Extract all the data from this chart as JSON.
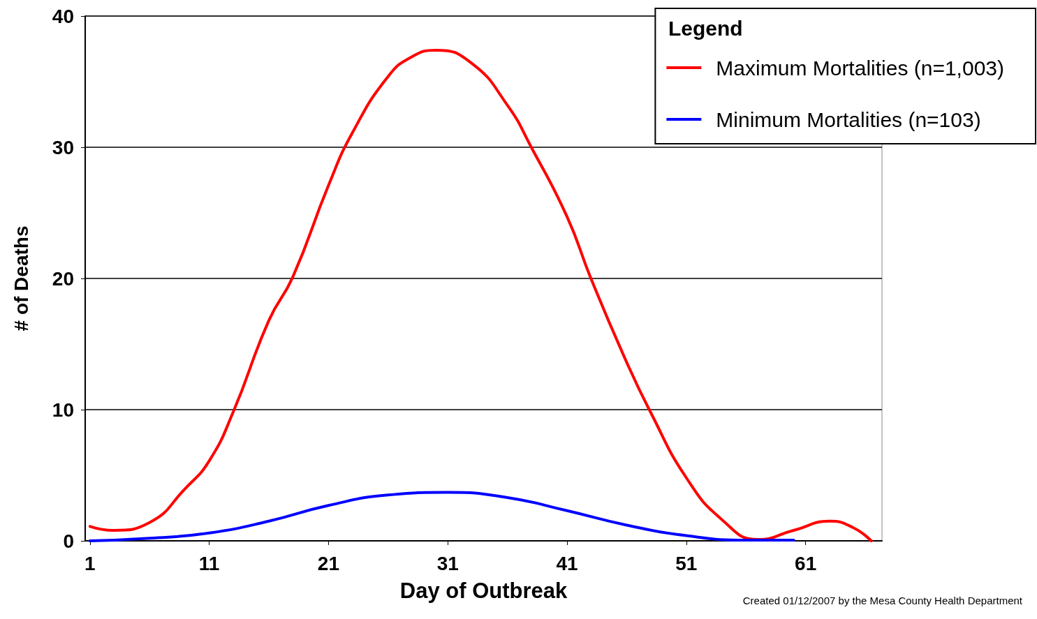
{
  "chart_data": {
    "type": "line",
    "xlabel": "Day of Outbreak",
    "ylabel": "# of Deaths",
    "legend_title": "Legend",
    "legend": "top right",
    "grid": "y",
    "marker": "none",
    "line_style": "solid",
    "xlim": [
      0.6,
      67.4
    ],
    "xticks": [
      1,
      11,
      21,
      31,
      41,
      51,
      61
    ],
    "ylim": [
      0,
      40
    ],
    "yticks": [
      0,
      10,
      20,
      30,
      40
    ],
    "series": [
      {
        "name": "Maximum Mortalities (n=1,003)",
        "color": "#ff0000",
        "x": [
          1,
          3,
          6,
          9,
          11,
          13,
          16,
          18,
          21,
          23,
          26,
          28,
          30,
          33,
          36,
          38,
          41,
          43,
          46,
          48,
          51,
          54,
          57,
          60,
          63,
          65,
          66.5
        ],
        "values": [
          1.1,
          0.8,
          1.4,
          4,
          6.1,
          9.8,
          16.8,
          20.1,
          27.1,
          31.1,
          35.4,
          36.9,
          37.4,
          36.4,
          33.2,
          30,
          24.7,
          20,
          13.6,
          9.8,
          4.8,
          1.6,
          0.1,
          0.8,
          1.5,
          1,
          0
        ]
      },
      {
        "name": "Minimum Mortalities (n=103)",
        "color": "#0000ff",
        "x": [
          1,
          6,
          11,
          16,
          21,
          26,
          31,
          36,
          41,
          46,
          51,
          56,
          60
        ],
        "values": [
          0,
          0.2,
          0.6,
          1.5,
          2.7,
          3.5,
          3.7,
          3.3,
          2.3,
          1.2,
          0.4,
          0.05,
          0.05
        ]
      }
    ],
    "annotations": [
      "Created 01/12/2007 by the Mesa County Health Department"
    ]
  }
}
